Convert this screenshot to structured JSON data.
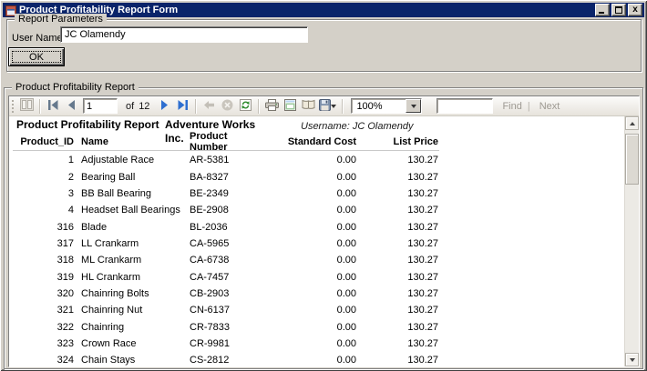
{
  "window": {
    "title": "Product Profitability Report Form",
    "close_glyph": "x",
    "icon_names": [
      "app-icon",
      "minimize-icon",
      "maximize-icon",
      "close-icon"
    ]
  },
  "colors": {
    "titlebar": "#0A246A",
    "chrome": "#D4D0C8",
    "nav_accent": "#2E6FD0",
    "page_bg": "#FFFFFF"
  },
  "parameters": {
    "group_label": "Report Parameters",
    "user_name_label": "User Name:",
    "user_name_value": "JC Olamendy",
    "ok_label": "OK"
  },
  "viewer": {
    "group_label": "Product Profitability Report",
    "toolbar": {
      "page_current": "1",
      "of_label": "of",
      "page_total": "12",
      "zoom_value": "100%",
      "search_value": "",
      "find_label": "Find",
      "link_separator": "|",
      "next_label": "Next",
      "icon_names": [
        "document-map-icon",
        "first-page-icon",
        "previous-page-icon",
        "next-page-icon",
        "last-page-icon",
        "back-icon",
        "stop-icon",
        "refresh-icon",
        "print-icon",
        "print-layout-icon",
        "page-setup-icon",
        "export-icon",
        "zoom-dropdown-icon"
      ]
    }
  },
  "report": {
    "title": "Product Profitability Report",
    "company": "Adventure Works Inc.",
    "username_line": "Username: JC Olamendy",
    "columns": [
      "Product_ID",
      "Name",
      "Product Number",
      "Standard Cost",
      "List Price"
    ],
    "rows": [
      [
        "1",
        "Adjustable Race",
        "AR-5381",
        "0.00",
        "130.27"
      ],
      [
        "2",
        "Bearing Ball",
        "BA-8327",
        "0.00",
        "130.27"
      ],
      [
        "3",
        "BB Ball Bearing",
        "BE-2349",
        "0.00",
        "130.27"
      ],
      [
        "4",
        "Headset Ball Bearings",
        "BE-2908",
        "0.00",
        "130.27"
      ],
      [
        "316",
        "Blade",
        "BL-2036",
        "0.00",
        "130.27"
      ],
      [
        "317",
        "LL Crankarm",
        "CA-5965",
        "0.00",
        "130.27"
      ],
      [
        "318",
        "ML Crankarm",
        "CA-6738",
        "0.00",
        "130.27"
      ],
      [
        "319",
        "HL Crankarm",
        "CA-7457",
        "0.00",
        "130.27"
      ],
      [
        "320",
        "Chainring Bolts",
        "CB-2903",
        "0.00",
        "130.27"
      ],
      [
        "321",
        "Chainring Nut",
        "CN-6137",
        "0.00",
        "130.27"
      ],
      [
        "322",
        "Chainring",
        "CR-7833",
        "0.00",
        "130.27"
      ],
      [
        "323",
        "Crown Race",
        "CR-9981",
        "0.00",
        "130.27"
      ],
      [
        "324",
        "Chain Stays",
        "CS-2812",
        "0.00",
        "130.27"
      ]
    ]
  }
}
